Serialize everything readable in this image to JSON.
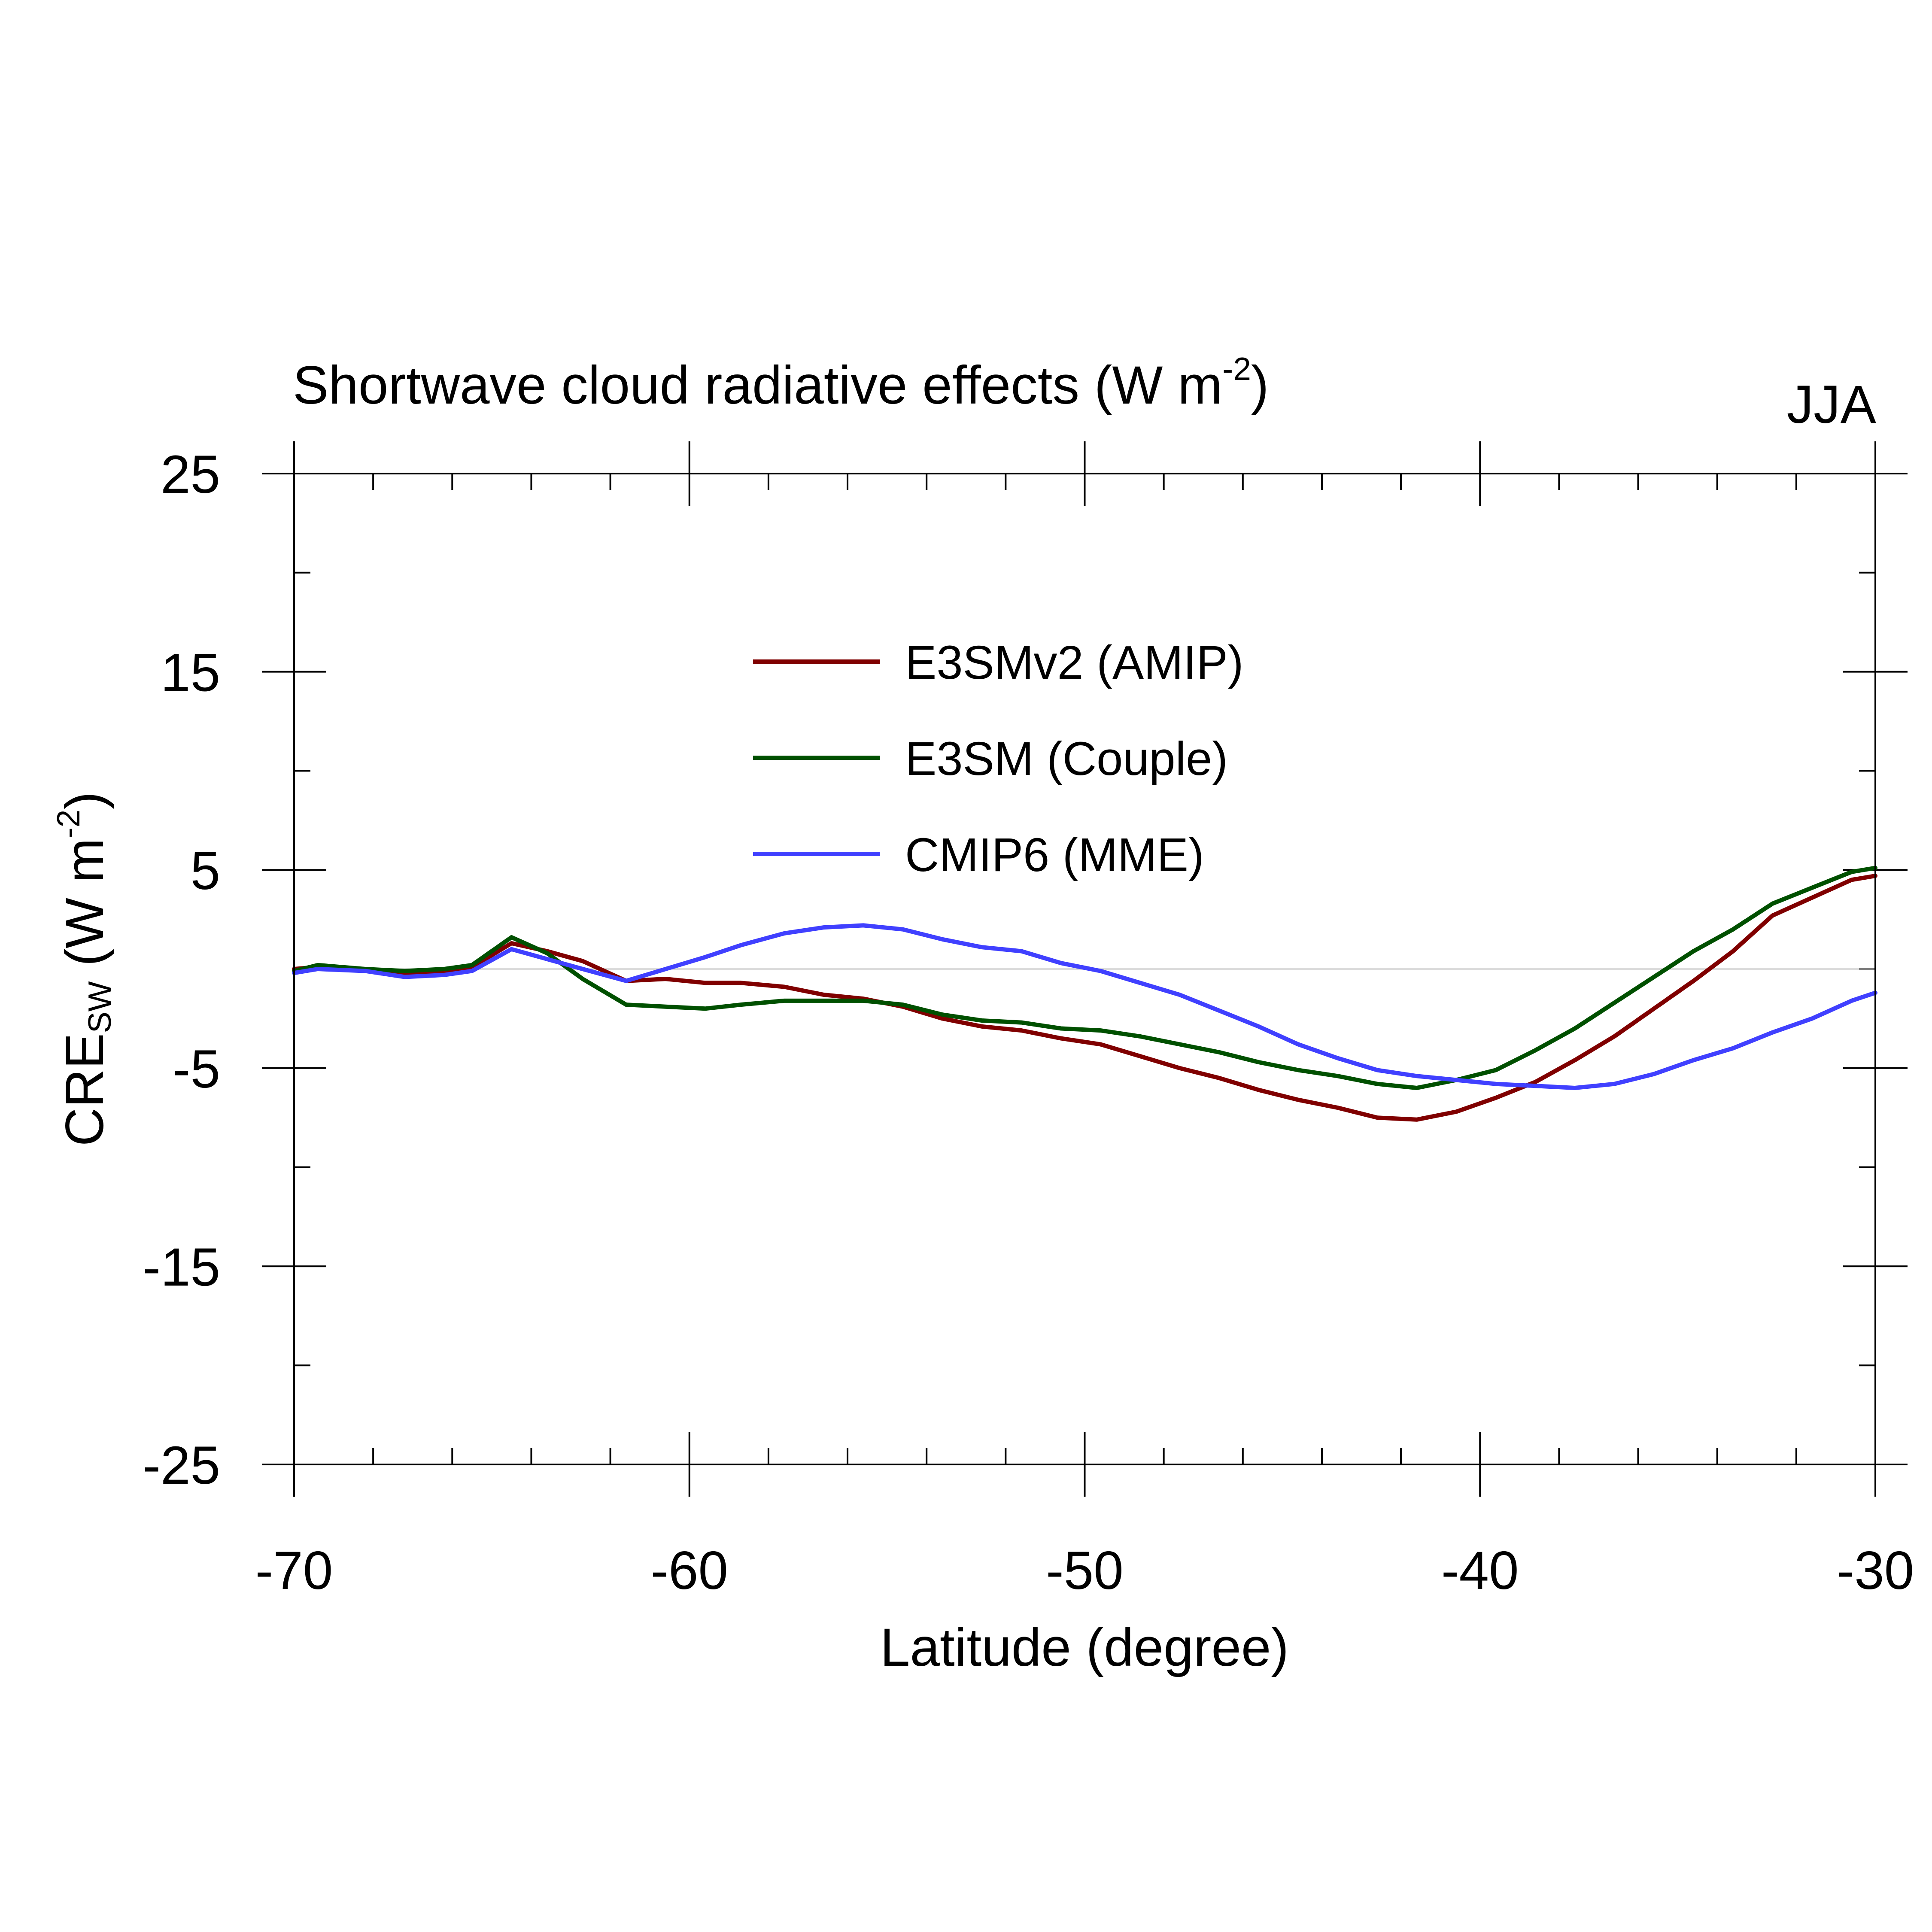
{
  "chart_data": {
    "type": "line",
    "title": "Shortwave cloud radiative effects (W m",
    "title_superscript": "-2",
    "title_close": ")",
    "season": "JJA",
    "xlabel": "Latitude (degree)",
    "ylabel_main": "CRE",
    "ylabel_subscript": "SW",
    "ylabel_units": " (W m",
    "ylabel_superscript": "-2",
    "ylabel_close": ")",
    "xlim": [
      -70,
      -30
    ],
    "ylim": [
      -25,
      25
    ],
    "x_ticks": [
      -70,
      -60,
      -50,
      -40,
      -30
    ],
    "x_tick_labels": [
      "-70",
      "-60",
      "-50",
      "-40",
      "-30"
    ],
    "y_ticks": [
      25,
      15,
      5,
      -5,
      -15,
      -25
    ],
    "y_tick_labels": [
      "25",
      "15",
      "5",
      "-5",
      "-15",
      "-25"
    ],
    "zero_line": true,
    "legend_position": "upper-center",
    "x": [
      -70,
      -69.4,
      -68.2,
      -67.2,
      -66.2,
      -65.5,
      -64.5,
      -63.6,
      -62.7,
      -61.6,
      -60.6,
      -59.6,
      -58.7,
      -57.6,
      -56.6,
      -55.6,
      -54.6,
      -53.6,
      -52.6,
      -51.6,
      -50.6,
      -49.6,
      -48.6,
      -47.6,
      -46.6,
      -45.6,
      -44.6,
      -43.6,
      -42.6,
      -41.6,
      -40.6,
      -39.6,
      -38.6,
      -37.6,
      -36.6,
      -35.6,
      -34.6,
      -33.6,
      -32.6,
      -31.6,
      -30.6,
      -30
    ],
    "series": [
      {
        "name": "E3SMv2 (AMIP)",
        "color": "#800000",
        "values": [
          0.0,
          0.1,
          0.0,
          -0.3,
          -0.2,
          0.1,
          1.3,
          0.9,
          0.4,
          -0.6,
          -0.5,
          -0.7,
          -0.7,
          -0.9,
          -1.3,
          -1.5,
          -1.9,
          -2.5,
          -2.9,
          -3.1,
          -3.5,
          -3.8,
          -4.4,
          -5.0,
          -5.5,
          -6.1,
          -6.6,
          -7.0,
          -7.5,
          -7.6,
          -7.2,
          -6.5,
          -5.7,
          -4.6,
          -3.4,
          -2.0,
          -0.6,
          0.9,
          2.7,
          3.6,
          4.5,
          4.7
        ]
      },
      {
        "name": "E3SM (Couple)",
        "color": "#005000",
        "values": [
          -0.1,
          0.2,
          0.0,
          -0.1,
          0.0,
          0.2,
          1.6,
          0.8,
          -0.5,
          -1.8,
          -1.9,
          -2.0,
          -1.8,
          -1.6,
          -1.6,
          -1.6,
          -1.8,
          -2.3,
          -2.6,
          -2.7,
          -3.0,
          -3.1,
          -3.4,
          -3.8,
          -4.2,
          -4.7,
          -5.1,
          -5.4,
          -5.8,
          -6.0,
          -5.6,
          -5.1,
          -4.1,
          -3.0,
          -1.7,
          -0.4,
          0.9,
          2.0,
          3.3,
          4.1,
          4.9,
          5.1
        ]
      },
      {
        "name": "CMIP6 (MME)",
        "color": "#4040ff",
        "values": [
          -0.2,
          0.0,
          -0.1,
          -0.4,
          -0.3,
          -0.1,
          1.0,
          0.5,
          0.0,
          -0.6,
          0.0,
          0.6,
          1.2,
          1.8,
          2.1,
          2.2,
          2.0,
          1.5,
          1.1,
          0.9,
          0.3,
          -0.1,
          -0.7,
          -1.3,
          -2.1,
          -2.9,
          -3.8,
          -4.5,
          -5.1,
          -5.4,
          -5.6,
          -5.8,
          -5.9,
          -6.0,
          -5.8,
          -5.3,
          -4.6,
          -4.0,
          -3.2,
          -2.5,
          -1.6,
          -1.2
        ]
      }
    ]
  }
}
